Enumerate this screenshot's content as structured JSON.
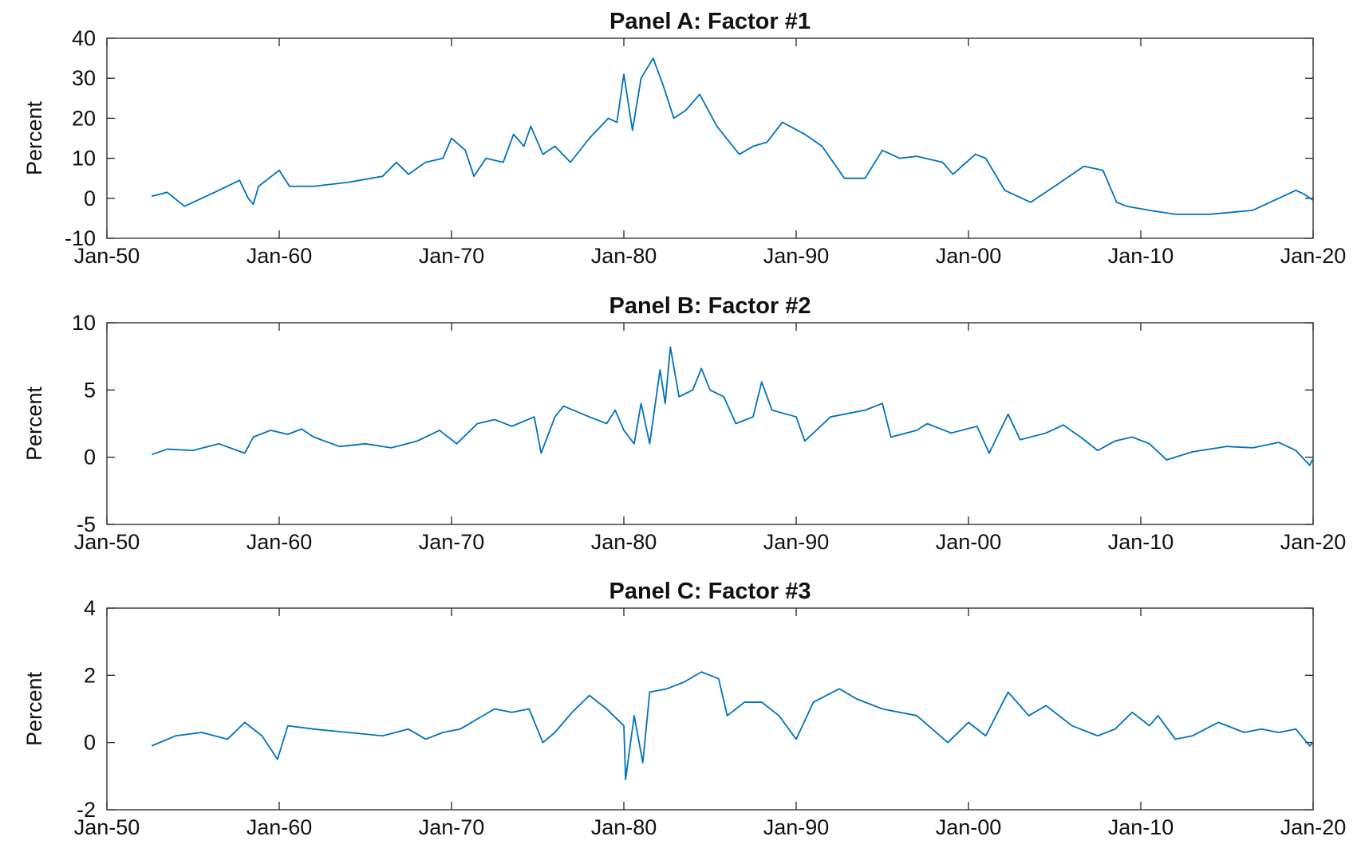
{
  "chart_data": [
    {
      "type": "line",
      "title": "Panel A:  Factor #1",
      "y_label": "Percent",
      "color": "#0072bd",
      "xlim": [
        1950,
        2020
      ],
      "ylim": [
        -10,
        40
      ],
      "xticks": [
        {
          "value": 1950,
          "label": "Jan-50"
        },
        {
          "value": 1960,
          "label": "Jan-60"
        },
        {
          "value": 1970,
          "label": "Jan-70"
        },
        {
          "value": 1980,
          "label": "Jan-80"
        },
        {
          "value": 1990,
          "label": "Jan-90"
        },
        {
          "value": 2000,
          "label": "Jan-00"
        },
        {
          "value": 2010,
          "label": "Jan-10"
        },
        {
          "value": 2020,
          "label": "Jan-20"
        }
      ],
      "yticks": [
        -10,
        0,
        10,
        20,
        30,
        40
      ],
      "x": [
        1952.6,
        1953.5,
        1954.5,
        1955.5,
        1956.5,
        1957.7,
        1958.2,
        1958.5,
        1958.8,
        1960,
        1960.6,
        1962,
        1964,
        1966,
        1966.8,
        1967.5,
        1968.5,
        1969.5,
        1970,
        1970.8,
        1971.3,
        1972,
        1973,
        1973.6,
        1974.2,
        1974.6,
        1975.3,
        1976,
        1976.9,
        1978,
        1979.1,
        1979.6,
        1980,
        1980.5,
        1981,
        1981.7,
        1982.3,
        1982.9,
        1983.6,
        1984.4,
        1985.4,
        1986.7,
        1987.5,
        1988.3,
        1989.2,
        1990.5,
        1991.5,
        1992.8,
        1994,
        1995,
        1996,
        1997,
        1998.5,
        1999.1,
        2000.4,
        2001,
        2002.1,
        2003.6,
        2005,
        2006.7,
        2007.8,
        2008.6,
        2009.2,
        2010.5,
        2012,
        2014,
        2016.5,
        2018,
        2019,
        2019.5,
        2020
      ],
      "values": [
        0.5,
        1.5,
        -2,
        0,
        2,
        4.5,
        0,
        -1.5,
        3,
        7,
        3,
        3,
        4,
        5.5,
        9,
        6,
        9,
        10,
        15,
        12,
        5.5,
        10,
        9,
        16,
        13,
        18,
        11,
        13,
        9,
        15,
        20,
        19,
        31,
        17,
        30,
        35,
        28,
        20,
        22,
        26,
        18,
        11,
        13,
        14,
        19,
        16,
        13,
        5,
        5,
        12,
        10,
        10.5,
        9,
        6,
        11,
        10,
        2,
        -1,
        3,
        8,
        7,
        -1,
        -2,
        -3,
        -4,
        -4,
        -3,
        0,
        2,
        1,
        -0.5
      ]
    },
    {
      "type": "line",
      "title": "Panel B:  Factor #2",
      "y_label": "Percent",
      "color": "#0072bd",
      "xlim": [
        1950,
        2020
      ],
      "ylim": [
        -5,
        10
      ],
      "xticks": [
        {
          "value": 1950,
          "label": "Jan-50"
        },
        {
          "value": 1960,
          "label": "Jan-60"
        },
        {
          "value": 1970,
          "label": "Jan-70"
        },
        {
          "value": 1980,
          "label": "Jan-80"
        },
        {
          "value": 1990,
          "label": "Jan-90"
        },
        {
          "value": 2000,
          "label": "Jan-00"
        },
        {
          "value": 2010,
          "label": "Jan-10"
        },
        {
          "value": 2020,
          "label": "Jan-20"
        }
      ],
      "yticks": [
        -5,
        0,
        5,
        10
      ],
      "x": [
        1952.6,
        1953.5,
        1955,
        1956.5,
        1958,
        1958.5,
        1959.5,
        1960.5,
        1961.3,
        1962,
        1963.5,
        1965,
        1966.5,
        1968,
        1969.3,
        1970.3,
        1971.5,
        1972.5,
        1973.5,
        1974.8,
        1975.2,
        1976,
        1976.5,
        1978,
        1979,
        1979.5,
        1980,
        1980.6,
        1981,
        1981.5,
        1982.1,
        1982.4,
        1982.7,
        1983.2,
        1984,
        1984.5,
        1985,
        1985.8,
        1986.5,
        1987.5,
        1988,
        1988.6,
        1990,
        1990.5,
        1992,
        1994,
        1995,
        1995.5,
        1997,
        1997.6,
        1999,
        2000.5,
        2001.2,
        2002.3,
        2003,
        2004.5,
        2005.5,
        2006.5,
        2007.5,
        2008.5,
        2009.5,
        2010.5,
        2011.5,
        2013,
        2015,
        2016.5,
        2018,
        2019,
        2019.8,
        2020
      ],
      "values": [
        0.2,
        0.6,
        0.5,
        1,
        0.3,
        1.5,
        2,
        1.7,
        2.1,
        1.5,
        0.8,
        1,
        0.7,
        1.2,
        2,
        1,
        2.5,
        2.8,
        2.3,
        3,
        0.3,
        3,
        3.8,
        3,
        2.5,
        3.5,
        2,
        1,
        4,
        1,
        6.5,
        4,
        8.2,
        4.5,
        5,
        6.6,
        5,
        4.5,
        2.5,
        3,
        5.6,
        3.5,
        3,
        1.2,
        3,
        3.5,
        4,
        1.5,
        2,
        2.5,
        1.8,
        2.3,
        0.3,
        3.2,
        1.3,
        1.8,
        2.4,
        1.5,
        0.5,
        1.2,
        1.5,
        1,
        -0.2,
        0.4,
        0.8,
        0.7,
        1.1,
        0.5,
        -0.6,
        -0.1
      ]
    },
    {
      "type": "line",
      "title": "Panel C:  Factor #3",
      "y_label": "Percent",
      "color": "#0072bd",
      "xlim": [
        1950,
        2020
      ],
      "ylim": [
        -2,
        4
      ],
      "xticks": [
        {
          "value": 1950,
          "label": "Jan-50"
        },
        {
          "value": 1960,
          "label": "Jan-60"
        },
        {
          "value": 1970,
          "label": "Jan-70"
        },
        {
          "value": 1980,
          "label": "Jan-80"
        },
        {
          "value": 1990,
          "label": "Jan-90"
        },
        {
          "value": 2000,
          "label": "Jan-00"
        },
        {
          "value": 2010,
          "label": "Jan-10"
        },
        {
          "value": 2020,
          "label": "Jan-20"
        }
      ],
      "yticks": [
        -2,
        0,
        2,
        4
      ],
      "x": [
        1952.6,
        1954,
        1955.5,
        1957,
        1958,
        1959,
        1959.9,
        1960.5,
        1962,
        1964,
        1966,
        1967.5,
        1968.5,
        1969.5,
        1970.5,
        1971.5,
        1972.5,
        1973.5,
        1974.5,
        1975.3,
        1976,
        1977,
        1978,
        1979,
        1980,
        1980.1,
        1980.6,
        1981.1,
        1981.5,
        1982.5,
        1983.5,
        1984.5,
        1985.5,
        1986,
        1987,
        1988,
        1989,
        1990,
        1991,
        1992.5,
        1993.5,
        1995,
        1997,
        1998.8,
        2000,
        2001,
        2002.3,
        2003.5,
        2004.5,
        2006,
        2007.5,
        2008.5,
        2009.5,
        2010.5,
        2011,
        2012,
        2013,
        2014.5,
        2016,
        2017,
        2018,
        2019,
        2019.8,
        2020
      ],
      "values": [
        -0.1,
        0.2,
        0.3,
        0.1,
        0.6,
        0.2,
        -0.5,
        0.5,
        0.4,
        0.3,
        0.2,
        0.4,
        0.1,
        0.3,
        0.4,
        0.7,
        1,
        0.9,
        1,
        0,
        0.3,
        0.9,
        1.4,
        1,
        0.5,
        -1.1,
        0.8,
        -0.6,
        1.5,
        1.6,
        1.8,
        2.1,
        1.9,
        0.8,
        1.2,
        1.2,
        0.8,
        0.1,
        1.2,
        1.6,
        1.3,
        1,
        0.8,
        0,
        0.6,
        0.2,
        1.5,
        0.8,
        1.1,
        0.5,
        0.2,
        0.4,
        0.9,
        0.5,
        0.8,
        0.1,
        0.2,
        0.6,
        0.3,
        0.4,
        0.3,
        0.4,
        -0.1,
        0
      ]
    }
  ]
}
